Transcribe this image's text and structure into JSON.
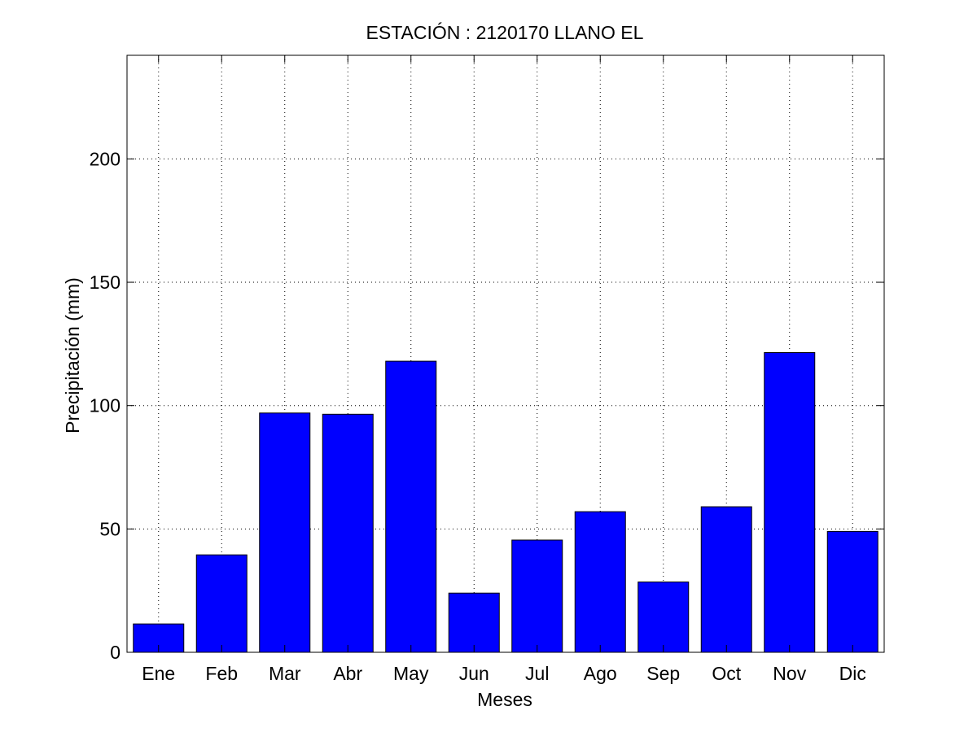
{
  "chart_data": {
    "type": "bar",
    "title": "ESTACIÓN :  2120170  LLANO EL",
    "xlabel": "Meses",
    "ylabel": "Precipitación (mm)",
    "categories": [
      "Ene",
      "Feb",
      "Mar",
      "Abr",
      "May",
      "Jun",
      "Jul",
      "Ago",
      "Sep",
      "Oct",
      "Nov",
      "Dic"
    ],
    "values": [
      11.5,
      39.5,
      97,
      96.5,
      118,
      24,
      45.5,
      57,
      28.5,
      59,
      121.5,
      49
    ],
    "ylim": [
      0,
      242
    ],
    "yticks": [
      0,
      50,
      100,
      150,
      200
    ],
    "grid": true,
    "bar_color": "#0000ff"
  }
}
